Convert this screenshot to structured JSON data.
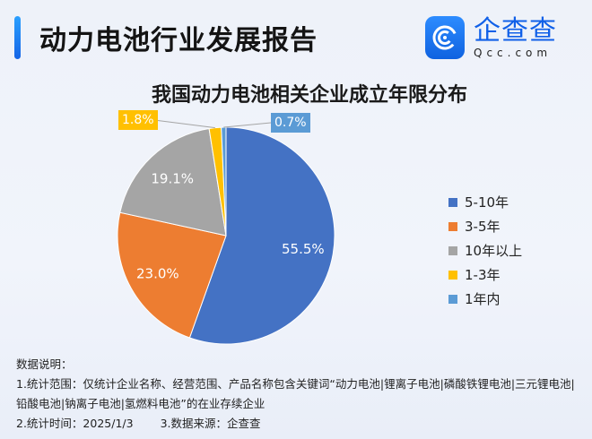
{
  "header": {
    "title": "动力电池行业发展报告",
    "logo_cn": "企查查",
    "logo_en": "Qcc.com"
  },
  "chart_data": {
    "type": "pie",
    "title": "我国动力电池相关企业成立年限分布",
    "categories": [
      "5-10年",
      "3-5年",
      "10年以上",
      "1-3年",
      "1年内"
    ],
    "values": [
      55.5,
      23.0,
      19.1,
      1.8,
      0.7
    ],
    "labels": [
      "55.5%",
      "23.0%",
      "19.1%",
      "1.8%",
      "0.7%"
    ],
    "colors": [
      "#4472c4",
      "#ed7d31",
      "#a5a5a5",
      "#ffc000",
      "#5b9bd5"
    ],
    "start_angle": "12 o'clock, clockwise",
    "legend_position": "right"
  },
  "legend": {
    "items": [
      {
        "label": "5-10年",
        "color": "#4472c4"
      },
      {
        "label": "3-5年",
        "color": "#ed7d31"
      },
      {
        "label": "10年以上",
        "color": "#a5a5a5"
      },
      {
        "label": "1-3年",
        "color": "#ffc000"
      },
      {
        "label": "1年内",
        "color": "#5b9bd5"
      }
    ]
  },
  "notes": {
    "heading": "数据说明：",
    "line1": "1.统计范围：仅统计企业名称、经营范围、产品名称包含关键词“动力电池|锂离子电池|磷酸铁锂电池|三元锂电池|铅酸电池|钠离子电池|氢燃料电池”的在业存续企业",
    "line2_time": "2.统计时间：2025/1/3",
    "line2_source": "3.数据来源：企查查"
  }
}
